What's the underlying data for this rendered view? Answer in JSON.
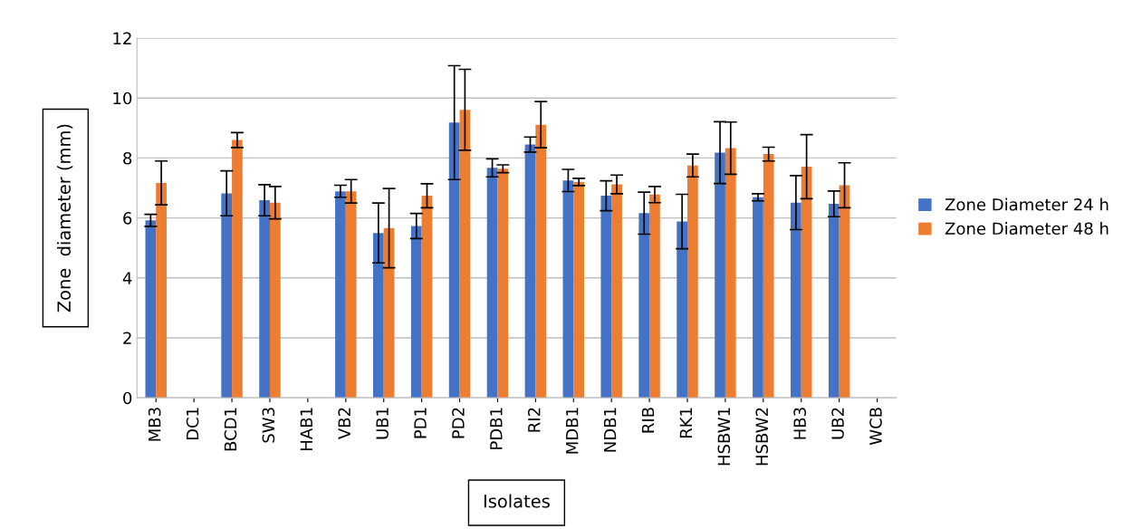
{
  "chart_data": {
    "type": "bar",
    "xlabel": "Isolates",
    "ylabel": "Zone  diameter (mm)",
    "categories": [
      "MB3",
      "DC1",
      "BCD1",
      "SW3",
      "HAB1",
      "VB2",
      "UB1",
      "PD1",
      "PD2",
      "PDB1",
      "RI2",
      "MDB1",
      "NDB1",
      "RIB",
      "RK1",
      "HSBW1",
      "HSBW2",
      "HB3",
      "UB2",
      "WCB"
    ],
    "series": [
      {
        "name": "Zone Diameter 24 h",
        "color": "#4472c4",
        "values": [
          5.92,
          null,
          6.82,
          6.59,
          null,
          6.89,
          5.5,
          5.73,
          9.18,
          7.67,
          8.45,
          7.25,
          6.74,
          6.16,
          5.88,
          8.18,
          6.69,
          6.51,
          6.47,
          null
        ],
        "errors": [
          0.2,
          null,
          0.75,
          0.52,
          null,
          0.2,
          1.0,
          0.42,
          1.9,
          0.3,
          0.25,
          0.37,
          0.5,
          0.7,
          0.91,
          1.03,
          0.12,
          0.9,
          0.43,
          null
        ]
      },
      {
        "name": "Zone Diameter 48 h",
        "color": "#ed7d31",
        "values": [
          7.17,
          null,
          8.6,
          6.51,
          null,
          6.89,
          5.66,
          6.74,
          9.61,
          7.64,
          9.11,
          7.2,
          7.12,
          6.78,
          7.75,
          8.33,
          8.13,
          7.71,
          7.09,
          null
        ],
        "errors": [
          0.73,
          null,
          0.25,
          0.54,
          null,
          0.39,
          1.32,
          0.4,
          1.35,
          0.13,
          0.77,
          0.12,
          0.31,
          0.27,
          0.38,
          0.87,
          0.23,
          1.07,
          0.75,
          null
        ]
      }
    ],
    "ylim": [
      0,
      12
    ],
    "yticks": [
      0,
      2,
      4,
      6,
      8,
      10,
      12
    ],
    "grid": "y",
    "legend": "right"
  }
}
